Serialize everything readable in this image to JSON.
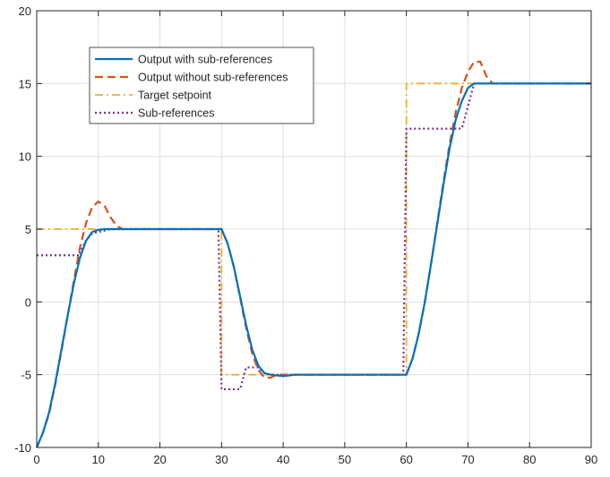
{
  "chart_data": {
    "type": "line",
    "title": "",
    "xlabel": "",
    "ylabel": "",
    "xlim": [
      0,
      90
    ],
    "ylim": [
      -10,
      20
    ],
    "x_ticks": [
      0,
      10,
      20,
      30,
      40,
      50,
      60,
      70,
      80,
      90
    ],
    "y_ticks": [
      -10,
      -5,
      0,
      5,
      10,
      15,
      20
    ],
    "x_tick_labels": [
      "0",
      "10",
      "20",
      "30",
      "40",
      "50",
      "60",
      "70",
      "80",
      "90"
    ],
    "y_tick_labels": [
      "-10",
      "-5",
      "0",
      "5",
      "10",
      "15",
      "20"
    ],
    "grid": true,
    "legend_placement": "top-left",
    "series": [
      {
        "name": "Output with sub-references",
        "color": "#0072BD",
        "style": "solid",
        "points": [
          [
            0,
            -10
          ],
          [
            1,
            -9
          ],
          [
            2,
            -7.6
          ],
          [
            3,
            -5.6
          ],
          [
            4,
            -3.3
          ],
          [
            5,
            -1
          ],
          [
            6,
            1.2
          ],
          [
            7,
            3
          ],
          [
            8,
            4.2
          ],
          [
            9,
            4.8
          ],
          [
            10,
            4.95
          ],
          [
            11,
            5
          ],
          [
            30,
            5
          ],
          [
            31,
            4
          ],
          [
            32,
            2.4
          ],
          [
            33,
            0.4
          ],
          [
            34,
            -1.6
          ],
          [
            35,
            -3.3
          ],
          [
            36,
            -4.4
          ],
          [
            37,
            -4.9
          ],
          [
            38,
            -5
          ],
          [
            40,
            -5.1
          ],
          [
            42,
            -5
          ],
          [
            60,
            -5
          ],
          [
            61,
            -3.9
          ],
          [
            62,
            -2.2
          ],
          [
            63,
            0
          ],
          [
            64,
            2.6
          ],
          [
            65,
            5.3
          ],
          [
            66,
            8
          ],
          [
            67,
            10.5
          ],
          [
            68,
            12.5
          ],
          [
            69,
            13.8
          ],
          [
            70,
            14.7
          ],
          [
            71,
            15
          ],
          [
            90,
            15
          ]
        ]
      },
      {
        "name": "Output without sub-references",
        "color": "#D95319",
        "style": "dashed",
        "points": [
          [
            0,
            -10
          ],
          [
            1,
            -9
          ],
          [
            2,
            -7.7
          ],
          [
            3,
            -5.7
          ],
          [
            4,
            -3.4
          ],
          [
            5,
            -1
          ],
          [
            6,
            1.4
          ],
          [
            7,
            3.7
          ],
          [
            8,
            5.4
          ],
          [
            9,
            6.5
          ],
          [
            10,
            6.9
          ],
          [
            11,
            6.6
          ],
          [
            12,
            5.8
          ],
          [
            13,
            5.2
          ],
          [
            14,
            5
          ],
          [
            30,
            5
          ],
          [
            31,
            4
          ],
          [
            32,
            2.4
          ],
          [
            33,
            0.3
          ],
          [
            34,
            -1.8
          ],
          [
            35,
            -3.6
          ],
          [
            36,
            -4.7
          ],
          [
            37,
            -5.2
          ],
          [
            38,
            -5.2
          ],
          [
            39,
            -5
          ],
          [
            42,
            -5
          ],
          [
            60,
            -5
          ],
          [
            61,
            -3.9
          ],
          [
            62,
            -2.2
          ],
          [
            63,
            0
          ],
          [
            64,
            2.6
          ],
          [
            65,
            5.4
          ],
          [
            66,
            8.2
          ],
          [
            67,
            10.8
          ],
          [
            68,
            13
          ],
          [
            69,
            14.7
          ],
          [
            70,
            15.8
          ],
          [
            71,
            16.5
          ],
          [
            72,
            16.5
          ],
          [
            73,
            15.5
          ],
          [
            74,
            15
          ],
          [
            90,
            15
          ]
        ]
      },
      {
        "name": "Target setpoint",
        "color": "#EDB120",
        "style": "dashdot",
        "points": [
          [
            0,
            5
          ],
          [
            30,
            5
          ],
          [
            30,
            -5
          ],
          [
            60,
            -5
          ],
          [
            60,
            15
          ],
          [
            90,
            15
          ]
        ]
      },
      {
        "name": "Sub-references",
        "color": "#7E2F8E",
        "style": "dotted",
        "points": [
          [
            0,
            3.2
          ],
          [
            7,
            3.2
          ],
          [
            7,
            3.4
          ],
          [
            8,
            4.2
          ],
          [
            9,
            4.7
          ],
          [
            10,
            4.8
          ],
          [
            11,
            4.9
          ],
          [
            12,
            5
          ],
          [
            29.5,
            5
          ],
          [
            30,
            -6
          ],
          [
            33,
            -6
          ],
          [
            34,
            -4.5
          ],
          [
            36,
            -4.5
          ],
          [
            37,
            -4.9
          ],
          [
            38,
            -5
          ],
          [
            59.5,
            -5
          ],
          [
            60,
            11.9
          ],
          [
            69,
            11.9
          ],
          [
            71,
            15
          ],
          [
            90,
            15
          ]
        ]
      }
    ]
  }
}
